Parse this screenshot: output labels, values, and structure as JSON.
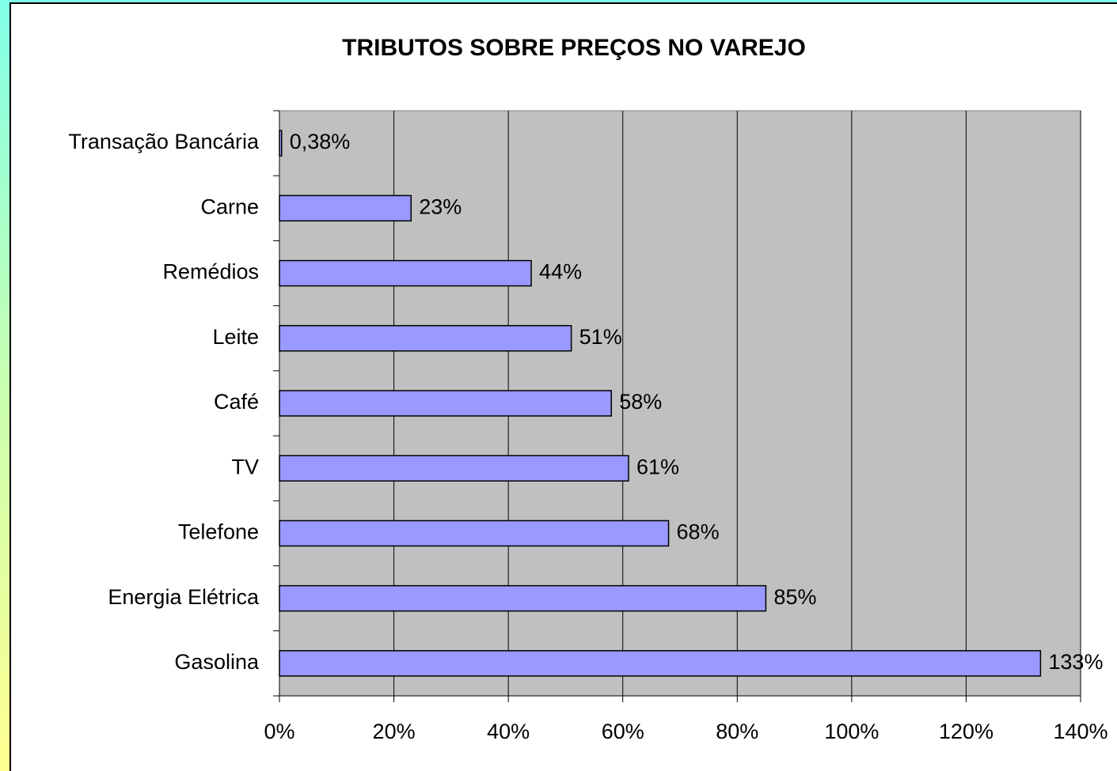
{
  "chart_data": {
    "type": "bar",
    "orientation": "horizontal",
    "title": "TRIBUTOS SOBRE PREÇOS NO VAREJO",
    "categories": [
      "Transação Bancária",
      "Carne",
      "Remédios",
      "Leite",
      "Café",
      "TV",
      "Telefone",
      "Energia Elétrica",
      "Gasolina"
    ],
    "values": [
      0.38,
      23,
      44,
      51,
      58,
      61,
      68,
      85,
      133
    ],
    "value_labels": [
      "0,38%",
      "23%",
      "44%",
      "51%",
      "58%",
      "61%",
      "68%",
      "85%",
      "133%"
    ],
    "color": "#9999ff",
    "xlim": [
      0,
      140
    ],
    "xticks": [
      {
        "value": 0,
        "label": "0%"
      },
      {
        "value": 20,
        "label": "20%"
      },
      {
        "value": 40,
        "label": "40%"
      },
      {
        "value": 60,
        "label": "60%"
      },
      {
        "value": 80,
        "label": "80%"
      },
      {
        "value": 100,
        "label": "100%"
      },
      {
        "value": 120,
        "label": "120%"
      },
      {
        "value": 140,
        "label": "140%"
      }
    ],
    "grid": true
  }
}
